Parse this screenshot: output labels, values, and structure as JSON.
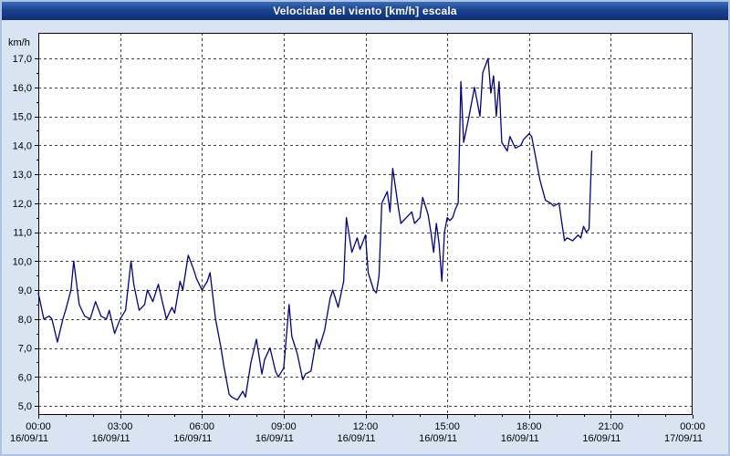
{
  "window": {
    "title": "Velocidad del viento [km/h] escala"
  },
  "colors": {
    "frame_border": "#a9c4e4",
    "panel_bg": "#d8e4f2",
    "plot_bg": "#ffffff",
    "titlebar_top": "#3c6cb4",
    "titlebar_bottom": "#0e2f77",
    "title_text": "#ffffff",
    "grid": "#404040",
    "axis": "#000000",
    "line": "#00008b"
  },
  "chart_data": {
    "type": "line",
    "title": "Velocidad del viento [km/h] escala",
    "xlabel": "",
    "ylabel": "km/h",
    "x_unit": "hours",
    "xlim": [
      0,
      24
    ],
    "ylim": [
      5,
      17
    ],
    "y_tick_step": 1,
    "x_tick_step_hours": 3,
    "grid": "dashed",
    "legend": "none",
    "y_tick_labels": [
      "5,0",
      "6,0",
      "7,0",
      "8,0",
      "9,0",
      "10,0",
      "11,0",
      "12,0",
      "13,0",
      "14,0",
      "15,0",
      "16,0",
      "17,0"
    ],
    "x_tick_labels": [
      "00:00",
      "03:00",
      "06:00",
      "09:00",
      "12:00",
      "15:00",
      "18:00",
      "21:00",
      "00:00"
    ],
    "x_tick_dates": [
      "16/09/11",
      "16/09/11",
      "16/09/11",
      "16/09/11",
      "16/09/11",
      "16/09/11",
      "16/09/11",
      "16/09/11",
      "17/09/11"
    ],
    "series": [
      {
        "name": "Velocidad del viento",
        "color": "#00008b",
        "points": [
          [
            0.0,
            8.9
          ],
          [
            0.2,
            8.0
          ],
          [
            0.4,
            8.1
          ],
          [
            0.5,
            8.0
          ],
          [
            0.7,
            7.2
          ],
          [
            0.9,
            8.0
          ],
          [
            1.0,
            8.3
          ],
          [
            1.2,
            9.0
          ],
          [
            1.3,
            10.0
          ],
          [
            1.5,
            8.5
          ],
          [
            1.7,
            8.1
          ],
          [
            1.9,
            8.0
          ],
          [
            2.1,
            8.6
          ],
          [
            2.3,
            8.1
          ],
          [
            2.5,
            8.0
          ],
          [
            2.6,
            8.3
          ],
          [
            2.8,
            7.5
          ],
          [
            3.0,
            8.0
          ],
          [
            3.2,
            8.3
          ],
          [
            3.4,
            10.0
          ],
          [
            3.5,
            9.2
          ],
          [
            3.7,
            8.3
          ],
          [
            3.9,
            8.5
          ],
          [
            4.0,
            9.0
          ],
          [
            4.2,
            8.6
          ],
          [
            4.4,
            9.2
          ],
          [
            4.5,
            8.8
          ],
          [
            4.7,
            8.0
          ],
          [
            4.9,
            8.4
          ],
          [
            5.0,
            8.2
          ],
          [
            5.2,
            9.3
          ],
          [
            5.3,
            9.0
          ],
          [
            5.5,
            10.2
          ],
          [
            5.7,
            9.7
          ],
          [
            5.8,
            9.4
          ],
          [
            6.0,
            9.0
          ],
          [
            6.2,
            9.3
          ],
          [
            6.3,
            9.6
          ],
          [
            6.5,
            8.0
          ],
          [
            6.7,
            7.0
          ],
          [
            6.8,
            6.4
          ],
          [
            7.0,
            5.4
          ],
          [
            7.1,
            5.3
          ],
          [
            7.3,
            5.2
          ],
          [
            7.5,
            5.5
          ],
          [
            7.6,
            5.3
          ],
          [
            7.8,
            6.5
          ],
          [
            8.0,
            7.3
          ],
          [
            8.2,
            6.1
          ],
          [
            8.3,
            6.6
          ],
          [
            8.5,
            7.0
          ],
          [
            8.7,
            6.2
          ],
          [
            8.8,
            6.0
          ],
          [
            9.0,
            6.3
          ],
          [
            9.2,
            8.5
          ],
          [
            9.3,
            7.4
          ],
          [
            9.5,
            6.8
          ],
          [
            9.7,
            5.9
          ],
          [
            9.8,
            6.1
          ],
          [
            10.0,
            6.2
          ],
          [
            10.2,
            7.3
          ],
          [
            10.3,
            7.0
          ],
          [
            10.5,
            7.6
          ],
          [
            10.7,
            8.7
          ],
          [
            10.8,
            9.0
          ],
          [
            11.0,
            8.4
          ],
          [
            11.2,
            9.3
          ],
          [
            11.3,
            11.5
          ],
          [
            11.5,
            10.3
          ],
          [
            11.7,
            10.8
          ],
          [
            11.8,
            10.4
          ],
          [
            12.0,
            10.9
          ],
          [
            12.1,
            9.6
          ],
          [
            12.3,
            9.0
          ],
          [
            12.4,
            8.9
          ],
          [
            12.5,
            9.5
          ],
          [
            12.6,
            12.0
          ],
          [
            12.8,
            12.4
          ],
          [
            12.9,
            11.7
          ],
          [
            13.0,
            13.2
          ],
          [
            13.2,
            11.9
          ],
          [
            13.3,
            11.3
          ],
          [
            13.5,
            11.5
          ],
          [
            13.7,
            11.7
          ],
          [
            13.8,
            11.3
          ],
          [
            14.0,
            11.5
          ],
          [
            14.1,
            12.2
          ],
          [
            14.3,
            11.6
          ],
          [
            14.4,
            11.0
          ],
          [
            14.5,
            10.3
          ],
          [
            14.6,
            11.3
          ],
          [
            14.7,
            10.6
          ],
          [
            14.8,
            9.3
          ],
          [
            14.9,
            11.0
          ],
          [
            15.0,
            11.5
          ],
          [
            15.1,
            11.4
          ],
          [
            15.2,
            11.5
          ],
          [
            15.3,
            11.8
          ],
          [
            15.4,
            12.0
          ],
          [
            15.5,
            16.2
          ],
          [
            15.6,
            14.1
          ],
          [
            15.8,
            15.0
          ],
          [
            15.9,
            15.5
          ],
          [
            16.0,
            16.0
          ],
          [
            16.2,
            15.0
          ],
          [
            16.3,
            16.5
          ],
          [
            16.5,
            17.0
          ],
          [
            16.6,
            15.8
          ],
          [
            16.7,
            16.4
          ],
          [
            16.8,
            15.0
          ],
          [
            16.9,
            16.2
          ],
          [
            17.0,
            14.1
          ],
          [
            17.2,
            13.8
          ],
          [
            17.3,
            14.3
          ],
          [
            17.5,
            13.9
          ],
          [
            17.7,
            14.0
          ],
          [
            17.8,
            14.2
          ],
          [
            18.0,
            14.4
          ],
          [
            18.1,
            14.3
          ],
          [
            18.3,
            13.3
          ],
          [
            18.4,
            12.8
          ],
          [
            18.6,
            12.1
          ],
          [
            18.8,
            12.0
          ],
          [
            18.9,
            11.9
          ],
          [
            19.1,
            12.0
          ],
          [
            19.3,
            10.7
          ],
          [
            19.4,
            10.8
          ],
          [
            19.6,
            10.7
          ],
          [
            19.8,
            10.9
          ],
          [
            19.9,
            10.8
          ],
          [
            20.0,
            11.2
          ],
          [
            20.1,
            11.0
          ],
          [
            20.2,
            11.1
          ],
          [
            20.3,
            13.8
          ]
        ]
      }
    ]
  }
}
